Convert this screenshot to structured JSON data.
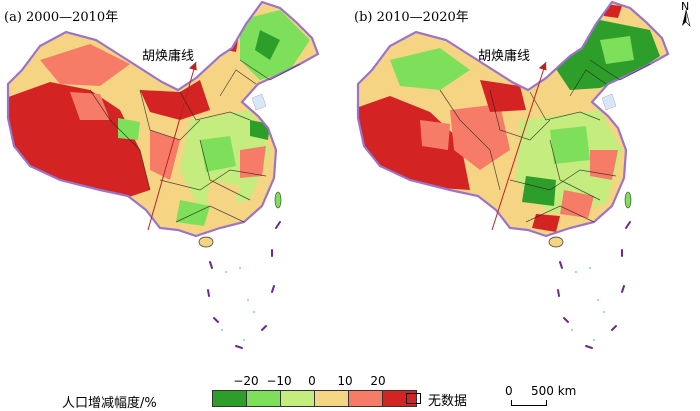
{
  "panels": [
    {
      "label": "(a) 2000—2010年",
      "line_label": "胡焕庸线"
    },
    {
      "label": "(b) 2010—2020年",
      "line_label": "胡焕庸线"
    }
  ],
  "north_label": "N",
  "legend": {
    "title": "人口增减幅度/%",
    "ticks": [
      "−20",
      "−10",
      "0",
      "10",
      "20"
    ],
    "colors": [
      "#2e9e2a",
      "#7ee05a",
      "#c5ec7e",
      "#f5d484",
      "#f77c68",
      "#d42323"
    ],
    "no_data_label": "无数据"
  },
  "scale_bar": {
    "zero": "0",
    "distance": "500 km"
  }
}
